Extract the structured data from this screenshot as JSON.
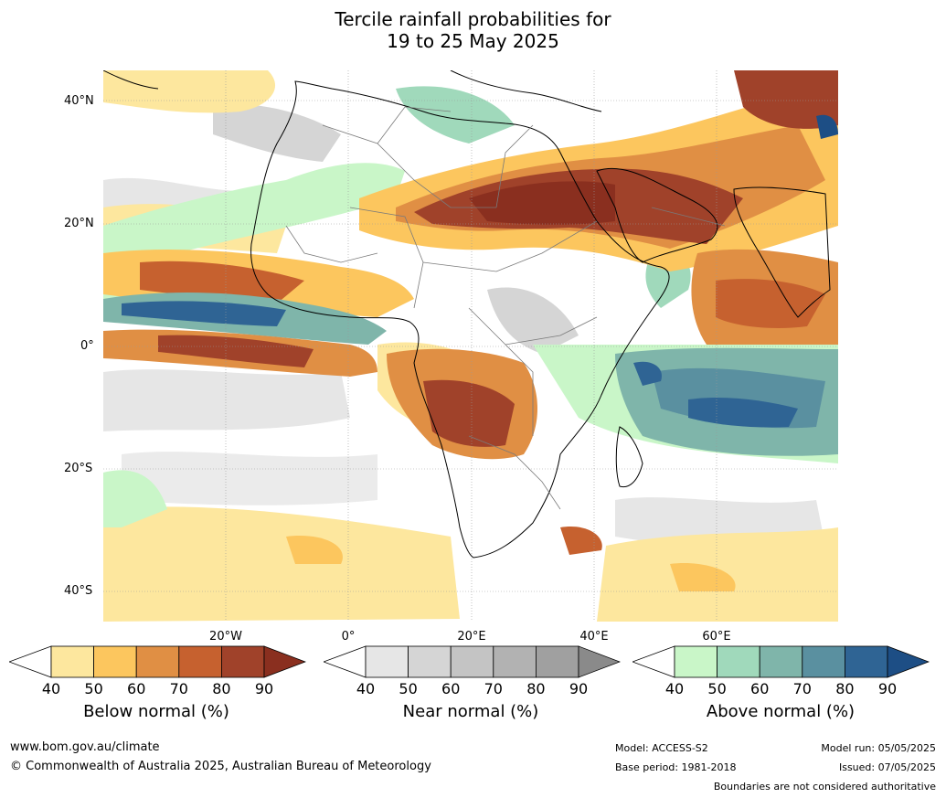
{
  "title_line1": "Tercile rainfall probabilities for",
  "title_line2": "19 to 25 May 2025",
  "lat_labels": [
    "40°N",
    "20°N",
    "0°",
    "20°S",
    "40°S"
  ],
  "lon_labels": [
    "20°W",
    "0°",
    "20°E",
    "40°E",
    "60°E"
  ],
  "colorbars": [
    {
      "label": "Below normal (%)",
      "ticks": [
        "40",
        "50",
        "60",
        "70",
        "80",
        "90"
      ],
      "colors": [
        "#ffffff",
        "#fde79e",
        "#fcc65e",
        "#e08f44",
        "#c6612f",
        "#a0422a",
        "#8a2f1f"
      ]
    },
    {
      "label": "Near normal (%)",
      "ticks": [
        "40",
        "50",
        "60",
        "70",
        "80",
        "90"
      ],
      "colors": [
        "#ffffff",
        "#e6e6e6",
        "#d5d5d5",
        "#c4c4c4",
        "#b2b2b2",
        "#a0a0a0",
        "#8a8a8a"
      ]
    },
    {
      "label": "Above normal (%)",
      "ticks": [
        "40",
        "50",
        "60",
        "70",
        "80",
        "90"
      ],
      "colors": [
        "#ffffff",
        "#c9f6c8",
        "#a0d9bb",
        "#7fb5aa",
        "#5a90a0",
        "#2f6494",
        "#1d4e85"
      ]
    }
  ],
  "footer": {
    "website": "www.bom.gov.au/climate",
    "copyright": "© Commonwealth of Australia 2025, Australian Bureau of Meteorology",
    "model": "Model: ACCESS-S2",
    "base_period": "Base period: 1981-2018",
    "model_run": "Model run: 05/05/2025",
    "issued": "Issued: 07/05/2025",
    "disclaimer": "Boundaries are not considered authoritative"
  }
}
